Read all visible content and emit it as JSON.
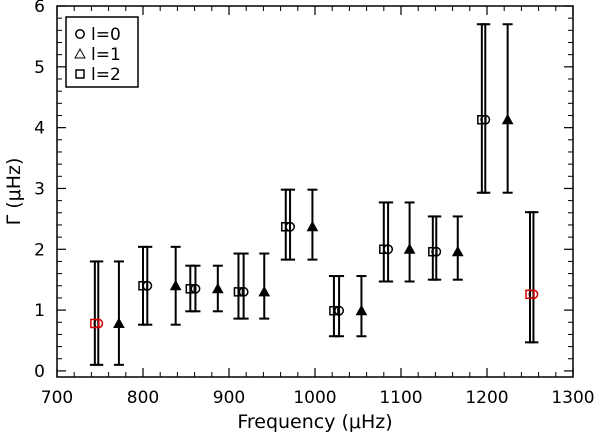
{
  "chart_data": {
    "type": "scatter",
    "title": "",
    "xlabel": "Frequency (μHz)",
    "ylabel": "Γ (μHz)",
    "xlim": [
      700,
      1300
    ],
    "ylim": [
      -0.1,
      6.0
    ],
    "xticks": [
      "700",
      "800",
      "900",
      "1000",
      "1100",
      "1200",
      "1300"
    ],
    "yticks": [
      "0",
      "1",
      "2",
      "3",
      "4",
      "5",
      "6"
    ],
    "legend_position": "top-left",
    "grid": false,
    "series": [
      {
        "name": "l=0",
        "marker": "circle",
        "points": [
          {
            "x": 748,
            "y": 0.78,
            "ylow": 0.1,
            "yhigh": 1.8,
            "color": "#d00000"
          },
          {
            "x": 805,
            "y": 1.4,
            "ylow": 0.76,
            "yhigh": 2.04,
            "color": "#000000"
          },
          {
            "x": 861,
            "y": 1.35,
            "ylow": 0.98,
            "yhigh": 1.73,
            "color": "#000000"
          },
          {
            "x": 917,
            "y": 1.3,
            "ylow": 0.86,
            "yhigh": 1.93,
            "color": "#000000"
          },
          {
            "x": 971,
            "y": 2.37,
            "ylow": 1.83,
            "yhigh": 2.98,
            "color": "#000000"
          },
          {
            "x": 1028,
            "y": 0.99,
            "ylow": 0.57,
            "yhigh": 1.56,
            "color": "#000000"
          },
          {
            "x": 1085,
            "y": 2.0,
            "ylow": 1.47,
            "yhigh": 2.77,
            "color": "#000000"
          },
          {
            "x": 1141,
            "y": 1.96,
            "ylow": 1.5,
            "yhigh": 2.54,
            "color": "#000000"
          },
          {
            "x": 1198,
            "y": 4.13,
            "ylow": 2.93,
            "yhigh": 5.7,
            "color": "#000000"
          },
          {
            "x": 1254,
            "y": 1.26,
            "ylow": 0.47,
            "yhigh": 2.61,
            "color": "#d00000"
          }
        ]
      },
      {
        "name": "l=1",
        "marker": "triangle",
        "points": [
          {
            "x": 772,
            "y": 0.78,
            "ylow": 0.1,
            "yhigh": 1.8
          },
          {
            "x": 838,
            "y": 1.4,
            "ylow": 0.76,
            "yhigh": 2.04
          },
          {
            "x": 887,
            "y": 1.35,
            "ylow": 0.98,
            "yhigh": 1.73
          },
          {
            "x": 941,
            "y": 1.3,
            "ylow": 0.86,
            "yhigh": 1.93
          },
          {
            "x": 997,
            "y": 2.37,
            "ylow": 1.83,
            "yhigh": 2.98
          },
          {
            "x": 1054,
            "y": 0.99,
            "ylow": 0.57,
            "yhigh": 1.56
          },
          {
            "x": 1110,
            "y": 2.0,
            "ylow": 1.47,
            "yhigh": 2.77
          },
          {
            "x": 1166,
            "y": 1.96,
            "ylow": 1.5,
            "yhigh": 2.54
          },
          {
            "x": 1224,
            "y": 4.13,
            "ylow": 2.93,
            "yhigh": 5.7
          }
        ]
      },
      {
        "name": "l=2",
        "marker": "square",
        "points": [
          {
            "x": 744,
            "y": 0.78,
            "ylow": 0.1,
            "yhigh": 1.8,
            "color": "#d00000"
          },
          {
            "x": 800,
            "y": 1.4,
            "ylow": 0.76,
            "yhigh": 2.04,
            "color": "#000000"
          },
          {
            "x": 855,
            "y": 1.35,
            "ylow": 0.98,
            "yhigh": 1.73,
            "color": "#000000"
          },
          {
            "x": 911,
            "y": 1.3,
            "ylow": 0.86,
            "yhigh": 1.93,
            "color": "#000000"
          },
          {
            "x": 966,
            "y": 2.37,
            "ylow": 1.83,
            "yhigh": 2.98,
            "color": "#000000"
          },
          {
            "x": 1022,
            "y": 0.99,
            "ylow": 0.57,
            "yhigh": 1.56,
            "color": "#000000"
          },
          {
            "x": 1080,
            "y": 2.0,
            "ylow": 1.47,
            "yhigh": 2.77,
            "color": "#000000"
          },
          {
            "x": 1137,
            "y": 1.96,
            "ylow": 1.5,
            "yhigh": 2.54,
            "color": "#000000"
          },
          {
            "x": 1194,
            "y": 4.13,
            "ylow": 2.93,
            "yhigh": 5.7,
            "color": "#000000"
          },
          {
            "x": 1250,
            "y": 1.26,
            "ylow": 0.47,
            "yhigh": 2.61,
            "color": "#d00000"
          }
        ]
      }
    ]
  }
}
